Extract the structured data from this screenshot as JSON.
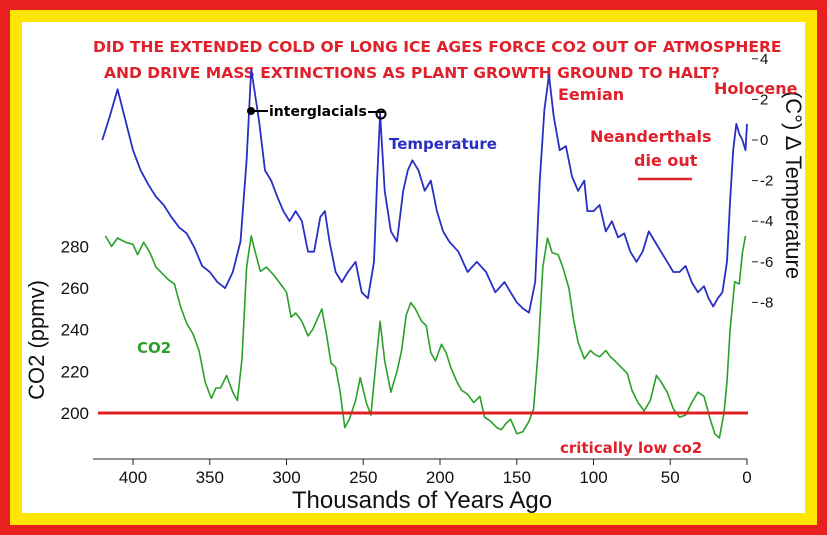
{
  "chart_data": {
    "type": "line",
    "title_lines": [
      "DID THE EXTENDED COLD OF LONG ICE AGES FORCE CO2 OUT OF ATMOSPHERE",
      "AND DRIVE MASS EXTINCTIONS AS PLANT GROWTH GROUND TO HALT?"
    ],
    "xlabel": "Thousands of Years Ago",
    "ylabel_left": "CO2 (ppmv)",
    "ylabel_right": "(C°) ∆ Temperature",
    "xlim": [
      0,
      425
    ],
    "x_reversed": true,
    "x_ticks": [
      "400",
      "350",
      "300",
      "250",
      "200",
      "150",
      "100",
      "50",
      "0"
    ],
    "y_left_lim": [
      180,
      300
    ],
    "y_left_ticks": [
      "280",
      "260",
      "240",
      "220",
      "200"
    ],
    "y_right_lim": [
      -10,
      4.3
    ],
    "y_right_ticks": [
      "4",
      "2",
      "0",
      "-2",
      "-4",
      "-6",
      "-8"
    ],
    "colors": {
      "temperature": "#2a2fc4",
      "co2": "#2aa02a",
      "annotation": "#e0202a",
      "threshold": "#e02020",
      "border_outer": "#e82020",
      "border_inner": "#ffe600"
    },
    "series": [
      {
        "name": "Temperature",
        "axis": "right",
        "points": [
          [
            420,
            0.0
          ],
          [
            415,
            1.2
          ],
          [
            410,
            2.5
          ],
          [
            405,
            1.0
          ],
          [
            400,
            -0.5
          ],
          [
            395,
            -1.5
          ],
          [
            390,
            -2.2
          ],
          [
            385,
            -2.8
          ],
          [
            380,
            -3.2
          ],
          [
            375,
            -3.8
          ],
          [
            370,
            -4.3
          ],
          [
            365,
            -4.6
          ],
          [
            360,
            -5.3
          ],
          [
            355,
            -6.2
          ],
          [
            350,
            -6.5
          ],
          [
            345,
            -7.0
          ],
          [
            340,
            -7.3
          ],
          [
            335,
            -6.5
          ],
          [
            330,
            -5.0
          ],
          [
            326,
            -1.0
          ],
          [
            323,
            3.5
          ],
          [
            318,
            1.0
          ],
          [
            314,
            -1.5
          ],
          [
            310,
            -2.0
          ],
          [
            306,
            -2.8
          ],
          [
            302,
            -3.5
          ],
          [
            298,
            -4.0
          ],
          [
            294,
            -3.5
          ],
          [
            290,
            -4.0
          ],
          [
            286,
            -5.5
          ],
          [
            282,
            -5.5
          ],
          [
            278,
            -3.8
          ],
          [
            275,
            -3.5
          ],
          [
            272,
            -5.0
          ],
          [
            268,
            -6.5
          ],
          [
            264,
            -7.0
          ],
          [
            260,
            -6.5
          ],
          [
            255,
            -6.0
          ],
          [
            251,
            -7.5
          ],
          [
            247,
            -7.8
          ],
          [
            243,
            -6.0
          ],
          [
            241,
            -2.0
          ],
          [
            239,
            1.3
          ],
          [
            236,
            -2.5
          ],
          [
            232,
            -4.5
          ],
          [
            228,
            -5.0
          ],
          [
            224,
            -2.5
          ],
          [
            221,
            -1.5
          ],
          [
            218,
            -1.0
          ],
          [
            214,
            -1.5
          ],
          [
            210,
            -2.5
          ],
          [
            206,
            -2.0
          ],
          [
            202,
            -3.5
          ],
          [
            198,
            -4.5
          ],
          [
            194,
            -5.0
          ],
          [
            188,
            -5.5
          ],
          [
            182,
            -6.5
          ],
          [
            176,
            -6.0
          ],
          [
            170,
            -6.5
          ],
          [
            164,
            -7.5
          ],
          [
            158,
            -7.0
          ],
          [
            154,
            -7.5
          ],
          [
            150,
            -8.0
          ],
          [
            146,
            -8.3
          ],
          [
            142,
            -8.5
          ],
          [
            138,
            -7.0
          ],
          [
            135,
            -2.0
          ],
          [
            132,
            1.5
          ],
          [
            129,
            3.2
          ],
          [
            126,
            1.2
          ],
          [
            122,
            -0.5
          ],
          [
            118,
            -0.3
          ],
          [
            114,
            -1.8
          ],
          [
            110,
            -2.5
          ],
          [
            106,
            -2.0
          ],
          [
            104,
            -3.5
          ],
          [
            100,
            -3.5
          ],
          [
            96,
            -3.2
          ],
          [
            92,
            -4.5
          ],
          [
            88,
            -4.0
          ],
          [
            84,
            -4.8
          ],
          [
            80,
            -4.6
          ],
          [
            76,
            -5.5
          ],
          [
            72,
            -6.0
          ],
          [
            68,
            -5.5
          ],
          [
            64,
            -4.5
          ],
          [
            60,
            -5.0
          ],
          [
            56,
            -5.5
          ],
          [
            52,
            -6.0
          ],
          [
            48,
            -6.5
          ],
          [
            44,
            -6.5
          ],
          [
            40,
            -6.2
          ],
          [
            36,
            -7.0
          ],
          [
            32,
            -7.5
          ],
          [
            28,
            -7.2
          ],
          [
            25,
            -7.8
          ],
          [
            22,
            -8.2
          ],
          [
            19,
            -7.8
          ],
          [
            16,
            -7.5
          ],
          [
            13,
            -6.0
          ],
          [
            11,
            -3.0
          ],
          [
            9,
            -0.5
          ],
          [
            7,
            0.8
          ],
          [
            5,
            0.3
          ],
          [
            3,
            0.0
          ],
          [
            1,
            -0.5
          ],
          [
            0,
            0.8
          ]
        ]
      },
      {
        "name": "CO2",
        "axis": "left",
        "points": [
          [
            418,
            285
          ],
          [
            414,
            280
          ],
          [
            410,
            284
          ],
          [
            405,
            282
          ],
          [
            400,
            281
          ],
          [
            397,
            276
          ],
          [
            393,
            282
          ],
          [
            389,
            277
          ],
          [
            385,
            270
          ],
          [
            381,
            267
          ],
          [
            377,
            264
          ],
          [
            373,
            262
          ],
          [
            369,
            251
          ],
          [
            365,
            243
          ],
          [
            361,
            238
          ],
          [
            357,
            230
          ],
          [
            353,
            215
          ],
          [
            349,
            207
          ],
          [
            346,
            212
          ],
          [
            343,
            212
          ],
          [
            339,
            218
          ],
          [
            335,
            210
          ],
          [
            332,
            206
          ],
          [
            329,
            226
          ],
          [
            326,
            270
          ],
          [
            323,
            285
          ],
          [
            321,
            279
          ],
          [
            317,
            268
          ],
          [
            313,
            270
          ],
          [
            308,
            266
          ],
          [
            304,
            262
          ],
          [
            300,
            258
          ],
          [
            297,
            246
          ],
          [
            294,
            248
          ],
          [
            290,
            244
          ],
          [
            286,
            237
          ],
          [
            283,
            240
          ],
          [
            280,
            245
          ],
          [
            277,
            250
          ],
          [
            274,
            238
          ],
          [
            271,
            224
          ],
          [
            268,
            222
          ],
          [
            265,
            210
          ],
          [
            262,
            193
          ],
          [
            259,
            197
          ],
          [
            255,
            206
          ],
          [
            252,
            217
          ],
          [
            248,
            205
          ],
          [
            245,
            199
          ],
          [
            242,
            222
          ],
          [
            239,
            244
          ],
          [
            236,
            225
          ],
          [
            232,
            210
          ],
          [
            228,
            220
          ],
          [
            225,
            230
          ],
          [
            222,
            247
          ],
          [
            219,
            253
          ],
          [
            216,
            250
          ],
          [
            212,
            244
          ],
          [
            209,
            242
          ],
          [
            206,
            229
          ],
          [
            203,
            225
          ],
          [
            199,
            233
          ],
          [
            196,
            229
          ],
          [
            193,
            222
          ],
          [
            189,
            215
          ],
          [
            186,
            211
          ],
          [
            182,
            209
          ],
          [
            178,
            205
          ],
          [
            174,
            208
          ],
          [
            171,
            198
          ],
          [
            167,
            196
          ],
          [
            163,
            193
          ],
          [
            160,
            192
          ],
          [
            157,
            195
          ],
          [
            154,
            197
          ],
          [
            150,
            190
          ],
          [
            146,
            191
          ],
          [
            142,
            196
          ],
          [
            139,
            202
          ],
          [
            136,
            230
          ],
          [
            133,
            270
          ],
          [
            130,
            284
          ],
          [
            127,
            277
          ],
          [
            123,
            276
          ],
          [
            120,
            270
          ],
          [
            116,
            260
          ],
          [
            113,
            245
          ],
          [
            110,
            234
          ],
          [
            106,
            226
          ],
          [
            102,
            230
          ],
          [
            99,
            228
          ],
          [
            96,
            227
          ],
          [
            92,
            230
          ],
          [
            89,
            227
          ],
          [
            86,
            225
          ],
          [
            82,
            222
          ],
          [
            78,
            219
          ],
          [
            75,
            211
          ],
          [
            71,
            205
          ],
          [
            67,
            201
          ],
          [
            63,
            206
          ],
          [
            59,
            218
          ],
          [
            56,
            215
          ],
          [
            52,
            210
          ],
          [
            48,
            202
          ],
          [
            44,
            198
          ],
          [
            40,
            199
          ],
          [
            36,
            205
          ],
          [
            32,
            210
          ],
          [
            28,
            208
          ],
          [
            24,
            197
          ],
          [
            21,
            190
          ],
          [
            18,
            188
          ],
          [
            15,
            200
          ],
          [
            13,
            215
          ],
          [
            11,
            240
          ],
          [
            8,
            263
          ],
          [
            5,
            262
          ],
          [
            3,
            277
          ],
          [
            1,
            285
          ]
        ]
      }
    ],
    "threshold": {
      "axis": "left",
      "value": 200
    },
    "annotations": {
      "interglacials": "interglacials",
      "temperature": "Temperature",
      "co2": "CO2",
      "eemian": "Eemian",
      "holocene": "Holocene",
      "neanderthals_1": "Neanderthals",
      "neanderthals_2": "die out",
      "critically_low": "critically low co2"
    }
  }
}
